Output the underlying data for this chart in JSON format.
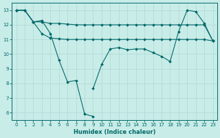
{
  "xlabel": "Humidex (Indice chaleur)",
  "bg_color": "#c8ece8",
  "grid_color": "#b0d8d4",
  "line_color": "#006868",
  "xlim": [
    -0.5,
    23.5
  ],
  "ylim": [
    5.5,
    13.5
  ],
  "yticks": [
    6,
    7,
    8,
    9,
    10,
    11,
    12,
    13
  ],
  "xticks": [
    0,
    1,
    2,
    3,
    4,
    5,
    6,
    7,
    8,
    9,
    10,
    11,
    12,
    13,
    14,
    15,
    16,
    17,
    18,
    19,
    20,
    21,
    22,
    23
  ],
  "line1_x": [
    0,
    1,
    2,
    3,
    4,
    5,
    6,
    7,
    8,
    9
  ],
  "line1_y": [
    13.0,
    13.0,
    12.2,
    12.3,
    11.4,
    9.6,
    8.1,
    8.2,
    5.9,
    5.75
  ],
  "line2_x": [
    9,
    10,
    11,
    12,
    13,
    14,
    15,
    16,
    17,
    18,
    19,
    20,
    21,
    22,
    23
  ],
  "line2_y": [
    7.65,
    9.3,
    10.35,
    10.45,
    10.3,
    10.35,
    10.35,
    10.1,
    9.85,
    9.5,
    11.55,
    13.0,
    12.9,
    12.1,
    10.9
  ],
  "line3_x": [
    0,
    1,
    2,
    3,
    4,
    5,
    6,
    7,
    8,
    9,
    10,
    11,
    12,
    13,
    14,
    15,
    16,
    17,
    18,
    19,
    20,
    21,
    22,
    23
  ],
  "line3_y": [
    13.0,
    13.0,
    12.2,
    12.2,
    12.1,
    12.1,
    12.05,
    12.0,
    12.0,
    12.0,
    12.0,
    12.0,
    12.0,
    12.0,
    12.0,
    12.0,
    12.0,
    12.0,
    12.0,
    12.0,
    12.0,
    12.0,
    12.0,
    10.9
  ],
  "line4_x": [
    0,
    1,
    2,
    3,
    4,
    5,
    6,
    7,
    8,
    9,
    10,
    11,
    12,
    13,
    14,
    15,
    16,
    17,
    18,
    19,
    20,
    21,
    22,
    23
  ],
  "line4_y": [
    13.0,
    13.0,
    12.2,
    11.4,
    11.1,
    11.05,
    11.0,
    11.0,
    11.0,
    11.0,
    11.0,
    11.0,
    11.0,
    11.0,
    11.0,
    11.0,
    11.0,
    11.0,
    11.0,
    11.0,
    11.0,
    11.0,
    11.0,
    10.9
  ]
}
